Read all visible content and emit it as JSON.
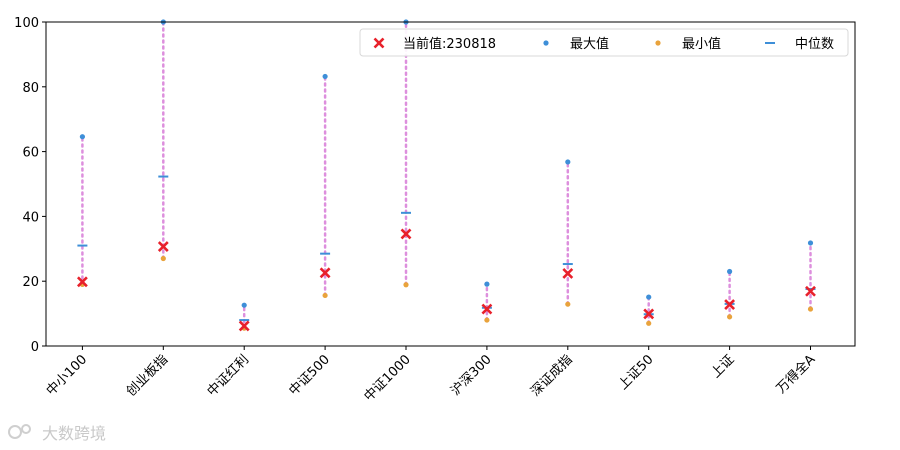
{
  "chart_data": {
    "type": "scatter",
    "categories": [
      "中小100",
      "创业板指",
      "中证红利",
      "中证500",
      "中证1000",
      "沪深300",
      "深证成指",
      "上证50",
      "上证",
      "万得全A"
    ],
    "series": [
      {
        "name": "当前值:230818",
        "marker": "x",
        "color": "#e8212b",
        "values": [
          19.8,
          30.7,
          6.2,
          22.6,
          34.6,
          11.4,
          22.4,
          9.9,
          12.8,
          16.9
        ]
      },
      {
        "name": "最大值",
        "marker": "dot",
        "color": "#3e8fd8",
        "values": [
          64.6,
          100,
          12.6,
          83.2,
          100,
          19.1,
          56.8,
          15.1,
          23.0,
          31.8
        ]
      },
      {
        "name": "最小值",
        "marker": "dot",
        "color": "#e9a33c",
        "values": [
          19.0,
          27.0,
          5.5,
          15.6,
          18.9,
          8.0,
          12.9,
          7.0,
          9.0,
          11.4
        ]
      },
      {
        "name": "中位数",
        "marker": "dash",
        "color": "#3e8fd8",
        "values": [
          31.0,
          52.3,
          8.0,
          28.5,
          41.1,
          11.8,
          25.3,
          9.8,
          13.0,
          17.6
        ]
      }
    ],
    "range_line_color": "#dd8fdd",
    "ylim": [
      0,
      100
    ],
    "yticks": [
      0,
      20,
      40,
      60,
      80,
      100
    ],
    "grid": false,
    "legend_position": "top-right",
    "legend_orientation": "horizontal"
  },
  "watermark": {
    "text": "大数跨境"
  }
}
